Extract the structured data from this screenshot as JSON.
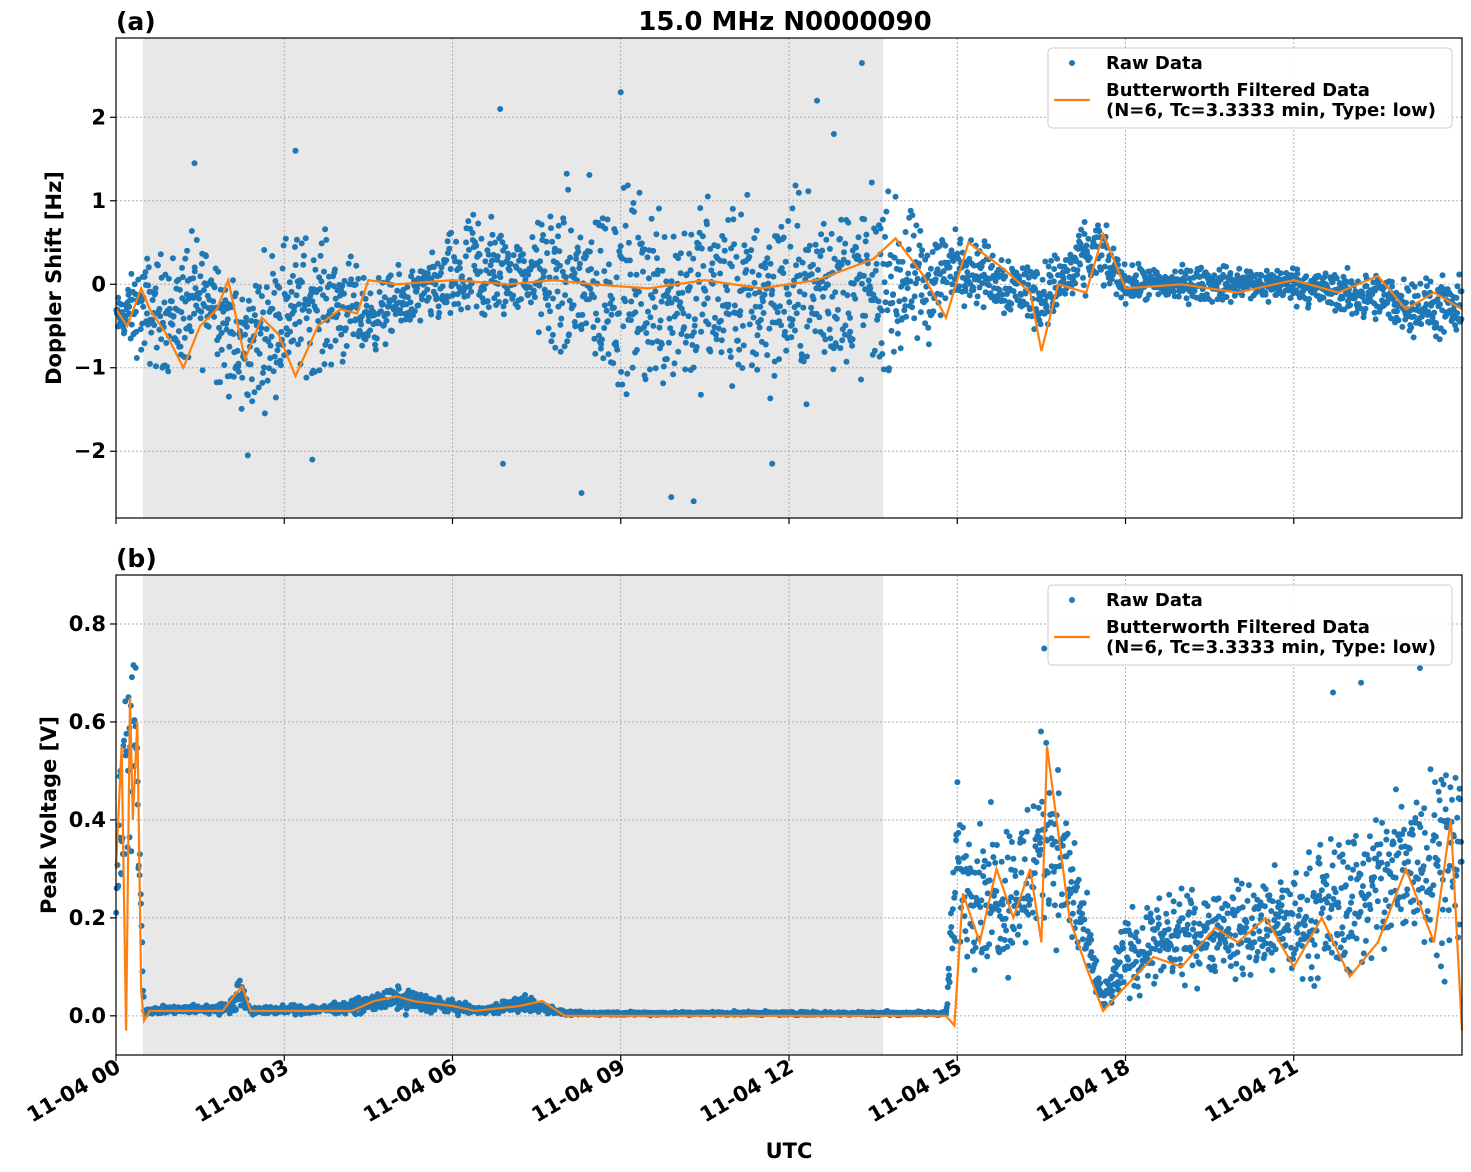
{
  "figure": {
    "title": "15.0 MHz N0000090",
    "xlabel": "UTC",
    "x_tick_labels": [
      "11-04 00",
      "11-04 03",
      "11-04 06",
      "11-04 09",
      "11-04 12",
      "11-04 15",
      "11-04 18",
      "11-04 21"
    ]
  },
  "colors": {
    "raw": "#1f77b4",
    "filtered": "#ff7f0e",
    "shade": "#e8e8e8",
    "grid": "#b0b0b0"
  },
  "chart_data": [
    {
      "type": "scatter",
      "panel_label": "(a)",
      "title": "15.0 MHz N0000090",
      "xlabel": "",
      "ylabel": "Doppler Shift [Hz]",
      "x_unit": "hours UTC on 11-04",
      "xlim": [
        0,
        24
      ],
      "ylim": [
        -2.8,
        2.95
      ],
      "yticks": [
        -2,
        -1,
        0,
        1,
        2
      ],
      "ytick_labels": [
        "−2",
        "−1",
        "0",
        "1",
        "2"
      ],
      "grid": true,
      "legend_position": "top-right",
      "shaded_interval": [
        0.48,
        13.68
      ],
      "series": [
        {
          "name": "Raw Data",
          "kind": "scatter",
          "envelope": [
            {
              "x": 0.0,
              "lo": -0.7,
              "hi": -0.1
            },
            {
              "x": 0.5,
              "lo": -1.2,
              "hi": 0.6
            },
            {
              "x": 1.0,
              "lo": -1.4,
              "hi": 0.7
            },
            {
              "x": 1.7,
              "lo": -1.2,
              "hi": 1.0
            },
            {
              "x": 2.2,
              "lo": -2.0,
              "hi": 0.3
            },
            {
              "x": 3.0,
              "lo": -1.5,
              "hi": 1.0
            },
            {
              "x": 3.8,
              "lo": -1.3,
              "hi": 0.9
            },
            {
              "x": 4.5,
              "lo": -1.0,
              "hi": 0.2
            },
            {
              "x": 5.5,
              "lo": -0.6,
              "hi": 0.4
            },
            {
              "x": 6.5,
              "lo": -1.0,
              "hi": 1.3
            },
            {
              "x": 7.3,
              "lo": -0.4,
              "hi": 0.6
            },
            {
              "x": 7.8,
              "lo": -1.4,
              "hi": 1.5
            },
            {
              "x": 9.0,
              "lo": -1.8,
              "hi": 1.6
            },
            {
              "x": 11.0,
              "lo": -1.8,
              "hi": 1.5
            },
            {
              "x": 13.6,
              "lo": -1.5,
              "hi": 1.5
            },
            {
              "x": 14.5,
              "lo": -1.0,
              "hi": 1.0
            },
            {
              "x": 15.0,
              "lo": -0.3,
              "hi": 0.8
            },
            {
              "x": 16.5,
              "lo": -0.7,
              "hi": 0.4
            },
            {
              "x": 17.5,
              "lo": -0.2,
              "hi": 1.0
            },
            {
              "x": 18.0,
              "lo": -0.3,
              "hi": 0.3
            },
            {
              "x": 21.0,
              "lo": -0.3,
              "hi": 0.3
            },
            {
              "x": 24.0,
              "lo": -0.9,
              "hi": 0.2
            }
          ],
          "outliers": [
            {
              "x": 1.4,
              "y": 1.45
            },
            {
              "x": 3.2,
              "y": 1.6
            },
            {
              "x": 3.5,
              "y": -2.1
            },
            {
              "x": 6.85,
              "y": 2.1
            },
            {
              "x": 9.0,
              "y": 2.3
            },
            {
              "x": 8.3,
              "y": -2.5
            },
            {
              "x": 9.9,
              "y": -2.55
            },
            {
              "x": 10.3,
              "y": -2.6
            },
            {
              "x": 12.5,
              "y": 2.2
            },
            {
              "x": 13.3,
              "y": 2.65
            },
            {
              "x": 12.8,
              "y": 1.8
            },
            {
              "x": 11.7,
              "y": -2.15
            },
            {
              "x": 2.35,
              "y": -2.05
            },
            {
              "x": 6.9,
              "y": -2.15
            }
          ]
        },
        {
          "name": "Butterworth Filtered Data\n(N=6, Tc=3.3333 min, Type: low)",
          "kind": "line",
          "x": [
            0.0,
            0.2,
            0.45,
            0.6,
            0.9,
            1.2,
            1.5,
            1.8,
            2.0,
            2.3,
            2.6,
            2.9,
            3.2,
            3.6,
            4.0,
            4.3,
            4.5,
            5.0,
            6.0,
            7.0,
            7.8,
            8.5,
            9.5,
            10.5,
            11.5,
            12.5,
            13.5,
            13.9,
            14.4,
            14.8,
            15.2,
            15.8,
            16.3,
            16.5,
            16.8,
            17.3,
            17.6,
            18.0,
            19.0,
            20.0,
            21.0,
            21.8,
            22.5,
            23.0,
            23.5,
            24.0
          ],
          "y": [
            -0.3,
            -0.5,
            -0.05,
            -0.3,
            -0.6,
            -1.0,
            -0.5,
            -0.3,
            0.05,
            -0.9,
            -0.4,
            -0.6,
            -1.1,
            -0.5,
            -0.3,
            -0.35,
            0.05,
            0.0,
            0.05,
            0.0,
            0.05,
            0.0,
            -0.05,
            0.05,
            -0.05,
            0.05,
            0.3,
            0.55,
            0.1,
            -0.4,
            0.5,
            0.2,
            -0.1,
            -0.8,
            0.0,
            -0.1,
            0.6,
            -0.05,
            0.0,
            -0.1,
            0.05,
            -0.1,
            0.1,
            -0.3,
            -0.1,
            -0.3
          ]
        }
      ]
    },
    {
      "type": "scatter",
      "panel_label": "(b)",
      "title": "",
      "xlabel": "UTC",
      "ylabel": "Peak Voltage [V]",
      "x_unit": "hours UTC on 11-04",
      "xlim": [
        0,
        24
      ],
      "ylim": [
        -0.08,
        0.9
      ],
      "yticks": [
        0.0,
        0.2,
        0.4,
        0.6,
        0.8
      ],
      "ytick_labels": [
        "0.0",
        "0.2",
        "0.4",
        "0.6",
        "0.8"
      ],
      "grid": true,
      "legend_position": "top-right",
      "shaded_interval": [
        0.48,
        13.68
      ],
      "series": [
        {
          "name": "Raw Data",
          "kind": "scatter",
          "envelope": [
            {
              "x": 0.0,
              "lo": 0.1,
              "hi": 0.6
            },
            {
              "x": 0.15,
              "lo": 0.05,
              "hi": 0.85
            },
            {
              "x": 0.35,
              "lo": 0.3,
              "hi": 0.84
            },
            {
              "x": 0.5,
              "lo": 0.0,
              "hi": 0.02
            },
            {
              "x": 2.0,
              "lo": 0.0,
              "hi": 0.03
            },
            {
              "x": 2.2,
              "lo": 0.0,
              "hi": 0.1
            },
            {
              "x": 2.4,
              "lo": 0.0,
              "hi": 0.02
            },
            {
              "x": 4.0,
              "lo": 0.0,
              "hi": 0.03
            },
            {
              "x": 5.0,
              "lo": 0.0,
              "hi": 0.07
            },
            {
              "x": 6.5,
              "lo": 0.0,
              "hi": 0.02
            },
            {
              "x": 7.3,
              "lo": 0.0,
              "hi": 0.05
            },
            {
              "x": 8.0,
              "lo": 0.0,
              "hi": 0.01
            },
            {
              "x": 14.8,
              "lo": 0.0,
              "hi": 0.01
            },
            {
              "x": 15.0,
              "lo": 0.05,
              "hi": 0.55
            },
            {
              "x": 15.5,
              "lo": 0.05,
              "hi": 0.45
            },
            {
              "x": 16.2,
              "lo": 0.02,
              "hi": 0.5
            },
            {
              "x": 16.6,
              "lo": 0.1,
              "hi": 0.7
            },
            {
              "x": 17.2,
              "lo": 0.05,
              "hi": 0.35
            },
            {
              "x": 17.6,
              "lo": 0.0,
              "hi": 0.05
            },
            {
              "x": 18.0,
              "lo": 0.0,
              "hi": 0.25
            },
            {
              "x": 19.5,
              "lo": 0.05,
              "hi": 0.3
            },
            {
              "x": 21.0,
              "lo": 0.02,
              "hi": 0.35
            },
            {
              "x": 22.5,
              "lo": 0.03,
              "hi": 0.5
            },
            {
              "x": 23.5,
              "lo": 0.05,
              "hi": 0.65
            },
            {
              "x": 24.0,
              "lo": 0.05,
              "hi": 0.6
            }
          ],
          "outliers": [
            {
              "x": 21.7,
              "y": 0.66
            },
            {
              "x": 23.25,
              "y": 0.71
            },
            {
              "x": 22.2,
              "y": 0.68
            },
            {
              "x": 16.55,
              "y": 0.75
            },
            {
              "x": 13.75,
              "y": 0.01
            }
          ]
        },
        {
          "name": "Butterworth Filtered Data\n(N=6, Tc=3.3333 min, Type: low)",
          "kind": "line",
          "x": [
            0.0,
            0.1,
            0.18,
            0.25,
            0.3,
            0.38,
            0.45,
            0.5,
            0.6,
            1.0,
            1.9,
            2.1,
            2.25,
            2.4,
            3.0,
            4.2,
            4.6,
            5.0,
            5.3,
            6.0,
            6.4,
            7.2,
            7.6,
            8.0,
            10.0,
            13.6,
            14.8,
            14.95,
            15.1,
            15.4,
            15.7,
            16.0,
            16.3,
            16.5,
            16.6,
            17.0,
            17.3,
            17.6,
            18.0,
            18.5,
            19.0,
            19.6,
            20.0,
            20.5,
            21.0,
            21.5,
            22.0,
            22.5,
            23.0,
            23.5,
            23.8,
            24.0
          ],
          "y": [
            0.3,
            0.55,
            -0.03,
            0.65,
            0.4,
            0.6,
            0.05,
            -0.01,
            0.01,
            0.01,
            0.01,
            0.04,
            0.06,
            0.01,
            0.01,
            0.01,
            0.03,
            0.04,
            0.03,
            0.02,
            0.01,
            0.02,
            0.03,
            0.0,
            0.0,
            0.0,
            0.0,
            -0.02,
            0.25,
            0.15,
            0.3,
            0.2,
            0.3,
            0.15,
            0.55,
            0.2,
            0.1,
            0.01,
            0.06,
            0.12,
            0.1,
            0.18,
            0.15,
            0.2,
            0.1,
            0.2,
            0.08,
            0.15,
            0.3,
            0.15,
            0.4,
            -0.03
          ]
        }
      ]
    }
  ]
}
